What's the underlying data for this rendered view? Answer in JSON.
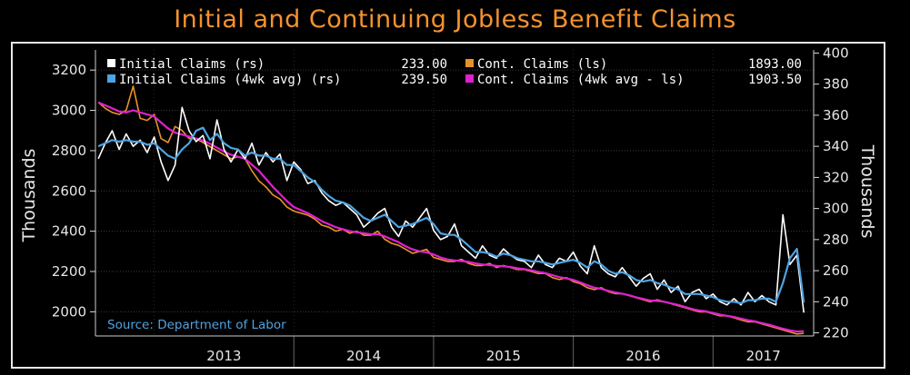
{
  "title": "Initial and Continuing Jobless Benefit Claims",
  "chart_data": {
    "type": "line",
    "source": "Source: Department of Labor",
    "y_left": {
      "label": "Thousands",
      "range": [
        1880,
        3300
      ],
      "ticks": [
        2000,
        2200,
        2400,
        2600,
        2800,
        3000,
        3200
      ]
    },
    "y_right": {
      "label": "Thousands",
      "range": [
        218,
        402
      ],
      "ticks": [
        220,
        240,
        260,
        280,
        300,
        320,
        340,
        360,
        380,
        400
      ]
    },
    "x_axis": {
      "labels": [
        "2013",
        "2014",
        "2015",
        "2016",
        "2017"
      ],
      "range": [
        2012.58,
        2017.72
      ]
    },
    "colors": {
      "initial": "#ffffff",
      "initial_4wk": "#4fa3e0",
      "cont": "#e8912a",
      "cont_4wk": "#e020d0",
      "title": "#f5922e",
      "source": "#4fa3e0"
    },
    "legend": [
      {
        "key": "initial",
        "name": "Initial Claims (rs)",
        "value": "233.00"
      },
      {
        "key": "cont",
        "name": "Cont. Claims (ls)",
        "value": "1893.00"
      },
      {
        "key": "initial_4wk",
        "name": "Initial Claims (4wk avg) (rs)",
        "value": "239.50"
      },
      {
        "key": "cont_4wk",
        "name": "Cont. Claims (4wk avg - ls)",
        "value": "1903.50"
      }
    ],
    "series": [
      {
        "name": "Initial Claims (rs)",
        "key": "initial",
        "axis": "right",
        "x": [
          2012.6,
          2012.65,
          2012.7,
          2012.75,
          2012.8,
          2012.85,
          2012.9,
          2012.95,
          2013.0,
          2013.05,
          2013.1,
          2013.15,
          2013.2,
          2013.25,
          2013.3,
          2013.35,
          2013.4,
          2013.45,
          2013.5,
          2013.55,
          2013.6,
          2013.65,
          2013.7,
          2013.75,
          2013.8,
          2013.85,
          2013.9,
          2013.95,
          2014.0,
          2014.05,
          2014.1,
          2014.15,
          2014.2,
          2014.25,
          2014.3,
          2014.35,
          2014.4,
          2014.45,
          2014.5,
          2014.55,
          2014.6,
          2014.65,
          2014.7,
          2014.75,
          2014.8,
          2014.85,
          2014.9,
          2014.95,
          2015.0,
          2015.05,
          2015.1,
          2015.15,
          2015.2,
          2015.25,
          2015.3,
          2015.35,
          2015.4,
          2015.45,
          2015.5,
          2015.55,
          2015.6,
          2015.65,
          2015.7,
          2015.75,
          2015.8,
          2015.85,
          2015.9,
          2015.95,
          2016.0,
          2016.05,
          2016.1,
          2016.15,
          2016.2,
          2016.25,
          2016.3,
          2016.35,
          2016.4,
          2016.45,
          2016.5,
          2016.55,
          2016.6,
          2016.65,
          2016.7,
          2016.75,
          2016.8,
          2016.85,
          2016.9,
          2016.95,
          2017.0,
          2017.05,
          2017.1,
          2017.15,
          2017.2,
          2017.25,
          2017.3,
          2017.35,
          2017.4,
          2017.45,
          2017.5,
          2017.55,
          2017.6,
          2017.65
        ],
        "y": [
          332,
          342,
          350,
          338,
          348,
          340,
          344,
          336,
          346,
          330,
          318,
          328,
          365,
          350,
          343,
          347,
          332,
          357,
          338,
          330,
          338,
          332,
          342,
          328,
          336,
          330,
          335,
          318,
          330,
          325,
          316,
          318,
          310,
          305,
          302,
          304,
          300,
          296,
          288,
          292,
          297,
          300,
          288,
          282,
          292,
          288,
          294,
          300,
          286,
          280,
          282,
          290,
          276,
          272,
          268,
          276,
          270,
          268,
          274,
          270,
          267,
          266,
          262,
          270,
          264,
          262,
          268,
          266,
          272,
          263,
          258,
          276,
          262,
          258,
          256,
          262,
          256,
          250,
          255,
          258,
          248,
          254,
          246,
          250,
          240,
          246,
          248,
          242,
          245,
          240,
          238,
          242,
          238,
          246,
          240,
          244,
          240,
          238,
          296,
          264,
          270,
          233
        ]
      },
      {
        "name": "Initial Claims (4wk avg) (rs)",
        "key": "initial_4wk",
        "axis": "right",
        "x": [
          2012.6,
          2012.65,
          2012.7,
          2012.75,
          2012.8,
          2012.85,
          2012.9,
          2012.95,
          2013.0,
          2013.05,
          2013.1,
          2013.15,
          2013.2,
          2013.25,
          2013.3,
          2013.35,
          2013.4,
          2013.45,
          2013.5,
          2013.55,
          2013.6,
          2013.65,
          2013.7,
          2013.75,
          2013.8,
          2013.85,
          2013.9,
          2013.95,
          2014.0,
          2014.05,
          2014.1,
          2014.15,
          2014.2,
          2014.25,
          2014.3,
          2014.35,
          2014.4,
          2014.45,
          2014.5,
          2014.55,
          2014.6,
          2014.65,
          2014.7,
          2014.75,
          2014.8,
          2014.85,
          2014.9,
          2014.95,
          2015.0,
          2015.05,
          2015.1,
          2015.15,
          2015.2,
          2015.25,
          2015.3,
          2015.35,
          2015.4,
          2015.45,
          2015.5,
          2015.55,
          2015.6,
          2015.65,
          2015.7,
          2015.75,
          2015.8,
          2015.85,
          2015.9,
          2015.95,
          2016.0,
          2016.05,
          2016.1,
          2016.15,
          2016.2,
          2016.25,
          2016.3,
          2016.35,
          2016.4,
          2016.45,
          2016.5,
          2016.55,
          2016.6,
          2016.65,
          2016.7,
          2016.75,
          2016.8,
          2016.85,
          2016.9,
          2016.95,
          2017.0,
          2017.05,
          2017.1,
          2017.15,
          2017.2,
          2017.25,
          2017.3,
          2017.35,
          2017.4,
          2017.45,
          2017.5,
          2017.55,
          2017.6,
          2017.65
        ],
        "y": [
          340,
          342,
          344,
          343,
          344,
          343,
          343,
          341,
          342,
          338,
          334,
          332,
          338,
          342,
          350,
          352,
          344,
          348,
          342,
          339,
          338,
          334,
          336,
          334,
          334,
          332,
          332,
          328,
          328,
          324,
          320,
          317,
          312,
          308,
          305,
          304,
          302,
          298,
          294,
          292,
          294,
          296,
          292,
          288,
          289,
          290,
          292,
          294,
          290,
          284,
          283,
          283,
          280,
          276,
          272,
          272,
          271,
          269,
          271,
          270,
          268,
          267,
          266,
          266,
          265,
          264,
          265,
          266,
          267,
          265,
          262,
          266,
          264,
          260,
          258,
          259,
          257,
          254,
          253,
          254,
          252,
          251,
          249,
          248,
          245,
          245,
          245,
          244,
          243,
          241,
          240,
          240,
          239,
          241,
          241,
          242,
          242,
          240,
          252,
          268,
          274,
          239.5
        ]
      },
      {
        "name": "Cont. Claims (ls)",
        "key": "cont",
        "axis": "left",
        "x": [
          2012.6,
          2012.65,
          2012.7,
          2012.75,
          2012.8,
          2012.85,
          2012.9,
          2012.95,
          2013.0,
          2013.05,
          2013.1,
          2013.15,
          2013.2,
          2013.25,
          2013.3,
          2013.35,
          2013.4,
          2013.45,
          2013.5,
          2013.55,
          2013.6,
          2013.65,
          2013.7,
          2013.75,
          2013.8,
          2013.85,
          2013.9,
          2013.95,
          2014.0,
          2014.05,
          2014.1,
          2014.15,
          2014.2,
          2014.25,
          2014.3,
          2014.35,
          2014.4,
          2014.45,
          2014.5,
          2014.55,
          2014.6,
          2014.65,
          2014.7,
          2014.75,
          2014.8,
          2014.85,
          2014.9,
          2014.95,
          2015.0,
          2015.05,
          2015.1,
          2015.15,
          2015.2,
          2015.25,
          2015.3,
          2015.35,
          2015.4,
          2015.45,
          2015.5,
          2015.55,
          2015.6,
          2015.65,
          2015.7,
          2015.75,
          2015.8,
          2015.85,
          2015.9,
          2015.95,
          2016.0,
          2016.05,
          2016.1,
          2016.15,
          2016.2,
          2016.25,
          2016.3,
          2016.35,
          2016.4,
          2016.45,
          2016.5,
          2016.55,
          2016.6,
          2016.65,
          2016.7,
          2016.75,
          2016.8,
          2016.85,
          2016.9,
          2016.95,
          2017.0,
          2017.05,
          2017.1,
          2017.15,
          2017.2,
          2017.25,
          2017.3,
          2017.35,
          2017.4,
          2017.45,
          2017.5,
          2017.55,
          2017.6,
          2017.65
        ],
        "y": [
          3040,
          3010,
          2990,
          2980,
          3000,
          3120,
          2960,
          2950,
          2980,
          2860,
          2840,
          2920,
          2900,
          2860,
          2860,
          2840,
          2820,
          2800,
          2780,
          2760,
          2770,
          2760,
          2700,
          2650,
          2620,
          2580,
          2560,
          2520,
          2500,
          2490,
          2480,
          2460,
          2430,
          2420,
          2400,
          2410,
          2390,
          2400,
          2380,
          2380,
          2400,
          2360,
          2340,
          2330,
          2310,
          2290,
          2300,
          2310,
          2270,
          2260,
          2250,
          2250,
          2260,
          2240,
          2230,
          2230,
          2240,
          2220,
          2230,
          2220,
          2210,
          2210,
          2200,
          2190,
          2190,
          2170,
          2160,
          2170,
          2150,
          2140,
          2120,
          2110,
          2120,
          2100,
          2090,
          2090,
          2080,
          2070,
          2060,
          2050,
          2060,
          2050,
          2040,
          2030,
          2020,
          2010,
          2000,
          2000,
          1990,
          1980,
          1980,
          1970,
          1960,
          1950,
          1950,
          1940,
          1930,
          1920,
          1910,
          1900,
          1890,
          1893
        ]
      },
      {
        "name": "Cont. Claims (4wk avg - ls)",
        "key": "cont_4wk",
        "axis": "left",
        "x": [
          2012.6,
          2012.65,
          2012.7,
          2012.75,
          2012.8,
          2012.85,
          2012.9,
          2012.95,
          2013.0,
          2013.05,
          2013.1,
          2013.15,
          2013.2,
          2013.25,
          2013.3,
          2013.35,
          2013.4,
          2013.45,
          2013.5,
          2013.55,
          2013.6,
          2013.65,
          2013.7,
          2013.75,
          2013.8,
          2013.85,
          2013.9,
          2013.95,
          2014.0,
          2014.05,
          2014.1,
          2014.15,
          2014.2,
          2014.25,
          2014.3,
          2014.35,
          2014.4,
          2014.45,
          2014.5,
          2014.55,
          2014.6,
          2014.65,
          2014.7,
          2014.75,
          2014.8,
          2014.85,
          2014.9,
          2014.95,
          2015.0,
          2015.05,
          2015.1,
          2015.15,
          2015.2,
          2015.25,
          2015.3,
          2015.35,
          2015.4,
          2015.45,
          2015.5,
          2015.55,
          2015.6,
          2015.65,
          2015.7,
          2015.75,
          2015.8,
          2015.85,
          2015.9,
          2015.95,
          2016.0,
          2016.05,
          2016.1,
          2016.15,
          2016.2,
          2016.25,
          2016.3,
          2016.35,
          2016.4,
          2016.45,
          2016.5,
          2016.55,
          2016.6,
          2016.65,
          2016.7,
          2016.75,
          2016.8,
          2016.85,
          2016.9,
          2016.95,
          2017.0,
          2017.05,
          2017.1,
          2017.15,
          2017.2,
          2017.25,
          2017.3,
          2017.35,
          2017.4,
          2017.45,
          2017.5,
          2017.55,
          2017.6,
          2017.65
        ],
        "y": [
          3040,
          3025,
          3010,
          2995,
          2990,
          3000,
          2990,
          2980,
          2970,
          2940,
          2910,
          2890,
          2880,
          2870,
          2860,
          2850,
          2835,
          2815,
          2795,
          2780,
          2770,
          2760,
          2730,
          2700,
          2660,
          2620,
          2585,
          2550,
          2520,
          2505,
          2490,
          2470,
          2450,
          2435,
          2420,
          2410,
          2400,
          2395,
          2390,
          2385,
          2385,
          2375,
          2360,
          2345,
          2325,
          2310,
          2300,
          2295,
          2285,
          2270,
          2260,
          2255,
          2252,
          2248,
          2240,
          2235,
          2232,
          2228,
          2226,
          2222,
          2216,
          2212,
          2206,
          2198,
          2192,
          2182,
          2172,
          2166,
          2158,
          2146,
          2132,
          2120,
          2114,
          2104,
          2096,
          2090,
          2082,
          2072,
          2064,
          2056,
          2054,
          2050,
          2042,
          2034,
          2024,
          2014,
          2006,
          2002,
          1994,
          1986,
          1980,
          1974,
          1966,
          1958,
          1952,
          1944,
          1936,
          1926,
          1916,
          1908,
          1902,
          1903.5
        ]
      }
    ]
  }
}
